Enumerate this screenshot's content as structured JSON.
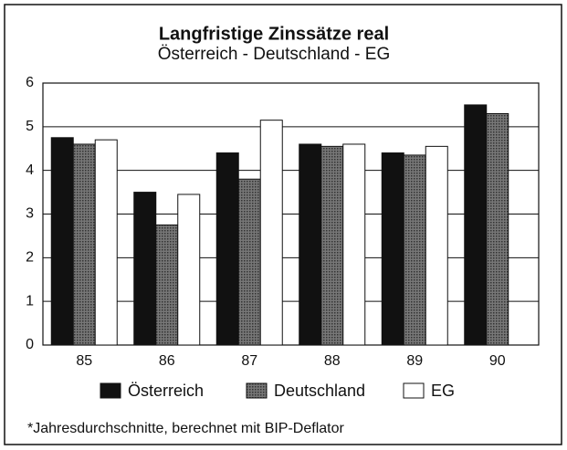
{
  "chart_data": {
    "type": "bar",
    "title": "Langfristige Zinssätze real",
    "subtitle": "Österreich - Deutschland - EG",
    "categories": [
      "85",
      "86",
      "87",
      "88",
      "89",
      "90"
    ],
    "series": [
      {
        "name": "Österreich",
        "color": "#111111",
        "values": [
          4.75,
          3.5,
          4.4,
          4.6,
          4.4,
          5.5
        ]
      },
      {
        "name": "Deutschland",
        "color": "#606060",
        "values": [
          4.6,
          2.75,
          3.8,
          4.55,
          4.35,
          5.3
        ]
      },
      {
        "name": "EG",
        "color": "#ffffff",
        "values": [
          4.7,
          3.45,
          5.15,
          4.6,
          4.55,
          null
        ]
      }
    ],
    "ylim": [
      0,
      6
    ],
    "yticks": [
      0,
      1,
      2,
      3,
      4,
      5,
      6
    ],
    "grid": true,
    "footnote": "*Jahresdurchschnitte, berechnet mit BIP-Deflator"
  }
}
